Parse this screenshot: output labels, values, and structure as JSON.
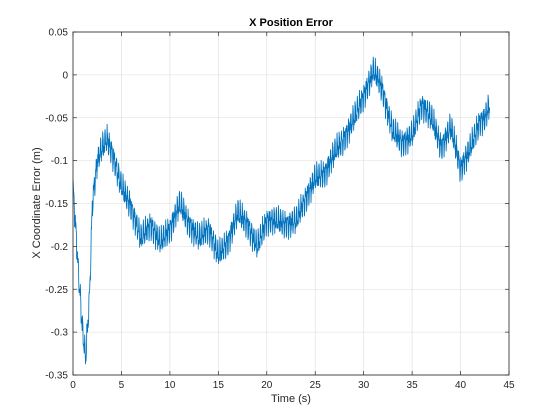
{
  "chart_data": {
    "type": "line",
    "title": "X Position Error",
    "xlabel": "Time (s)",
    "ylabel": "X Coordinate Error (m)",
    "xlim": [
      0,
      45
    ],
    "ylim": [
      -0.35,
      0.05
    ],
    "xticks": [
      0,
      5,
      10,
      15,
      20,
      25,
      30,
      35,
      40,
      45
    ],
    "yticks": [
      -0.35,
      -0.3,
      -0.25,
      -0.2,
      -0.15,
      -0.1,
      -0.05,
      0,
      0.05
    ],
    "xtick_labels": [
      "0",
      "5",
      "10",
      "15",
      "20",
      "25",
      "30",
      "35",
      "40",
      "45"
    ],
    "ytick_labels": [
      "-0.35",
      "-0.3",
      "-0.25",
      "-0.2",
      "-0.15",
      "-0.1",
      "-0.05",
      "0",
      "0.05"
    ],
    "grid": true,
    "series_color": "#0072BD",
    "oscillation_amplitude": 0.011,
    "series": [
      {
        "x": [
          0,
          0.5,
          1.0,
          1.3,
          1.7,
          2.0,
          2.5,
          3.0,
          3.5,
          4.0,
          5.0,
          6.0,
          7.0,
          8.0,
          9.0,
          10.0,
          11.0,
          12.0,
          13.0,
          14.0,
          15.0,
          16.0,
          17.0,
          18.0,
          19.0,
          20.0,
          21.0,
          22.0,
          23.0,
          24.0,
          25.0,
          26.0,
          27.0,
          28.0,
          29.0,
          30.0,
          30.5,
          31.0,
          31.5,
          32.0,
          32.5,
          33.0,
          34.0,
          35.0,
          36.0,
          37.0,
          38.0,
          39.0,
          40.0,
          41.0,
          42.0,
          42.5,
          43.0
        ],
        "y": [
          -0.13,
          -0.22,
          -0.3,
          -0.33,
          -0.26,
          -0.15,
          -0.1,
          -0.085,
          -0.075,
          -0.09,
          -0.13,
          -0.155,
          -0.19,
          -0.175,
          -0.195,
          -0.18,
          -0.15,
          -0.175,
          -0.19,
          -0.18,
          -0.21,
          -0.195,
          -0.16,
          -0.175,
          -0.2,
          -0.17,
          -0.17,
          -0.175,
          -0.17,
          -0.145,
          -0.12,
          -0.115,
          -0.09,
          -0.075,
          -0.05,
          -0.025,
          -0.01,
          0.005,
          -0.005,
          -0.02,
          -0.045,
          -0.065,
          -0.08,
          -0.07,
          -0.035,
          -0.05,
          -0.085,
          -0.06,
          -0.11,
          -0.085,
          -0.055,
          -0.05,
          -0.035
        ]
      }
    ]
  }
}
